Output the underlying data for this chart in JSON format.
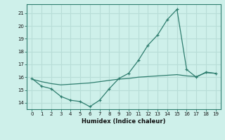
{
  "xlabel": "Humidex (Indice chaleur)",
  "x": [
    0,
    1,
    2,
    3,
    4,
    5,
    6,
    7,
    8,
    9,
    10,
    11,
    12,
    13,
    14,
    15,
    16,
    17,
    18,
    19
  ],
  "y_main": [
    15.9,
    15.3,
    15.1,
    14.5,
    14.2,
    14.1,
    13.7,
    14.2,
    15.1,
    15.9,
    16.3,
    17.3,
    18.5,
    19.3,
    20.5,
    21.3,
    16.6,
    16.0,
    16.4,
    16.3
  ],
  "y_trend": [
    15.85,
    15.65,
    15.5,
    15.4,
    15.45,
    15.5,
    15.55,
    15.65,
    15.75,
    15.85,
    15.9,
    16.0,
    16.05,
    16.1,
    16.15,
    16.2,
    16.1,
    16.05,
    16.35,
    16.3
  ],
  "line_color": "#2e7d6e",
  "bg_color": "#cef0ea",
  "grid_color": "#b8ddd7",
  "ylim": [
    13.5,
    21.7
  ],
  "yticks": [
    14,
    15,
    16,
    17,
    18,
    19,
    20,
    21
  ],
  "xlim": [
    -0.5,
    19.5
  ]
}
